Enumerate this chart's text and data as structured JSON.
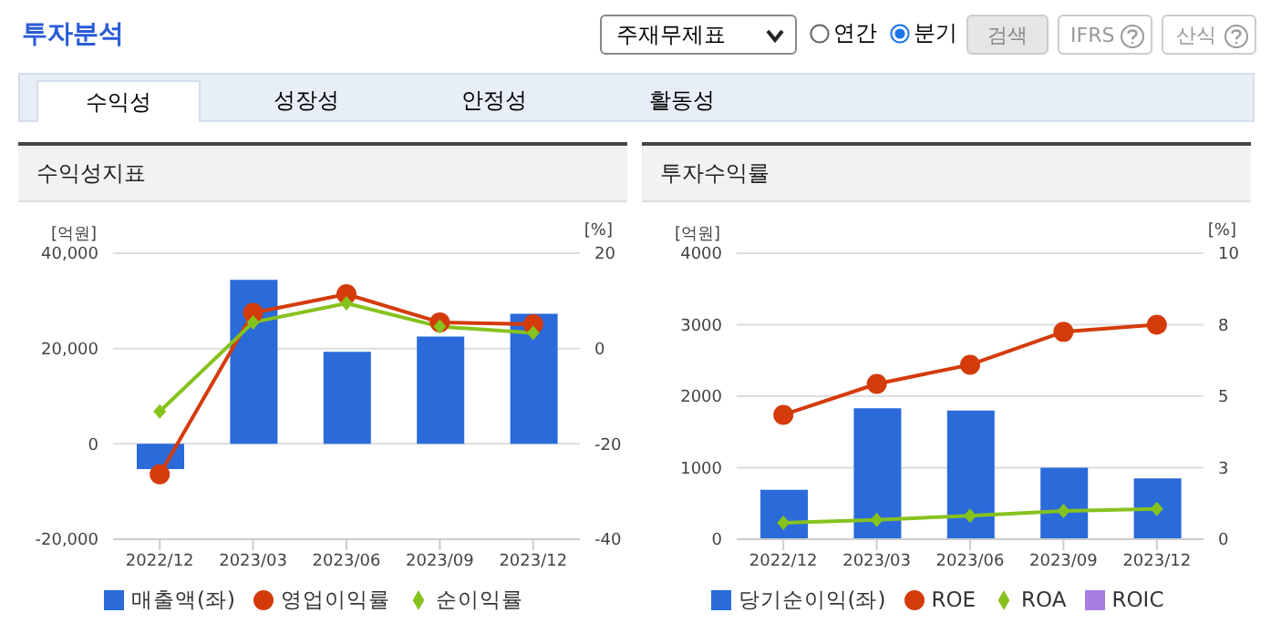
{
  "chart_data": [
    {
      "type": "other",
      "title": "투자분석",
      "annotations": [
        "주재무제표",
        "연간",
        "분기",
        "검색",
        "IFRS",
        "산식",
        "수익성",
        "성장성",
        "안정성",
        "활동성"
      ]
    },
    {
      "type": "bar",
      "title": "수익성지표",
      "ylabel": "[억원]",
      "y2label": "[%]",
      "categories": [
        "2022/12",
        "2023/03",
        "2023/06",
        "2023/09",
        "2023/12"
      ],
      "series": [
        {
          "name": "매출액(좌)",
          "type": "bar",
          "color": "#2a6ad9",
          "values": [
            -5300,
            34400,
            19300,
            22500,
            27300
          ]
        },
        {
          "name": "영업이익률",
          "type": "line",
          "axis": "y2",
          "color": "#d43b0b",
          "marker": "circle",
          "values": [
            -26.4,
            7.5,
            11.4,
            5.5,
            5.1
          ]
        },
        {
          "name": "순이익률",
          "type": "line",
          "axis": "y2",
          "color": "#86c21e",
          "marker": "diamond",
          "values": [
            -13.2,
            5.5,
            9.5,
            4.6,
            3.3
          ]
        }
      ],
      "ylim": [
        -20000,
        40000
      ],
      "yticks": [
        {
          "value": -20000,
          "label": "-20,000"
        },
        0,
        {
          "value": 20000,
          "label": "20,000"
        },
        {
          "value": 40000,
          "label": "40,000"
        }
      ],
      "y2lim": [
        -40,
        20
      ],
      "y2ticks": [
        -40,
        -20,
        0,
        20
      ],
      "grid": "y",
      "legend": "bottom"
    },
    {
      "type": "bar",
      "title": "투자수익률",
      "ylabel": "[억원]",
      "y2label": "[%]",
      "categories": [
        "2022/12",
        "2023/03",
        "2023/06",
        "2023/09",
        "2023/12"
      ],
      "series": [
        {
          "name": "당기순이익(좌)",
          "type": "bar",
          "color": "#2a6ad9",
          "values": [
            690,
            1830,
            1800,
            1000,
            850
          ]
        },
        {
          "name": "ROE",
          "type": "line",
          "axis": "y2",
          "color": "#d43b0b",
          "marker": "circle",
          "values": [
            4.35,
            5.43,
            6.1,
            7.25,
            7.5
          ]
        },
        {
          "name": "ROA",
          "type": "line",
          "axis": "y2",
          "color": "#86c21e",
          "marker": "diamond",
          "values": [
            0.57,
            0.68,
            0.82,
            0.99,
            1.06
          ]
        },
        {
          "name": "ROIC",
          "type": "line",
          "axis": "y2",
          "color": "#a57ee0",
          "marker": "square",
          "values": [
            null,
            null,
            null,
            null,
            null
          ]
        }
      ],
      "ylim": [
        0,
        4000
      ],
      "yticks": [
        0,
        1000,
        2000,
        3000,
        4000
      ],
      "y2lim": [
        0,
        10
      ],
      "y2ticks": [
        0,
        {
          "value": 2.5,
          "label": "3"
        },
        5,
        {
          "value": 7.5,
          "label": "8"
        },
        10
      ],
      "grid": "y",
      "legend": "bottom"
    }
  ]
}
